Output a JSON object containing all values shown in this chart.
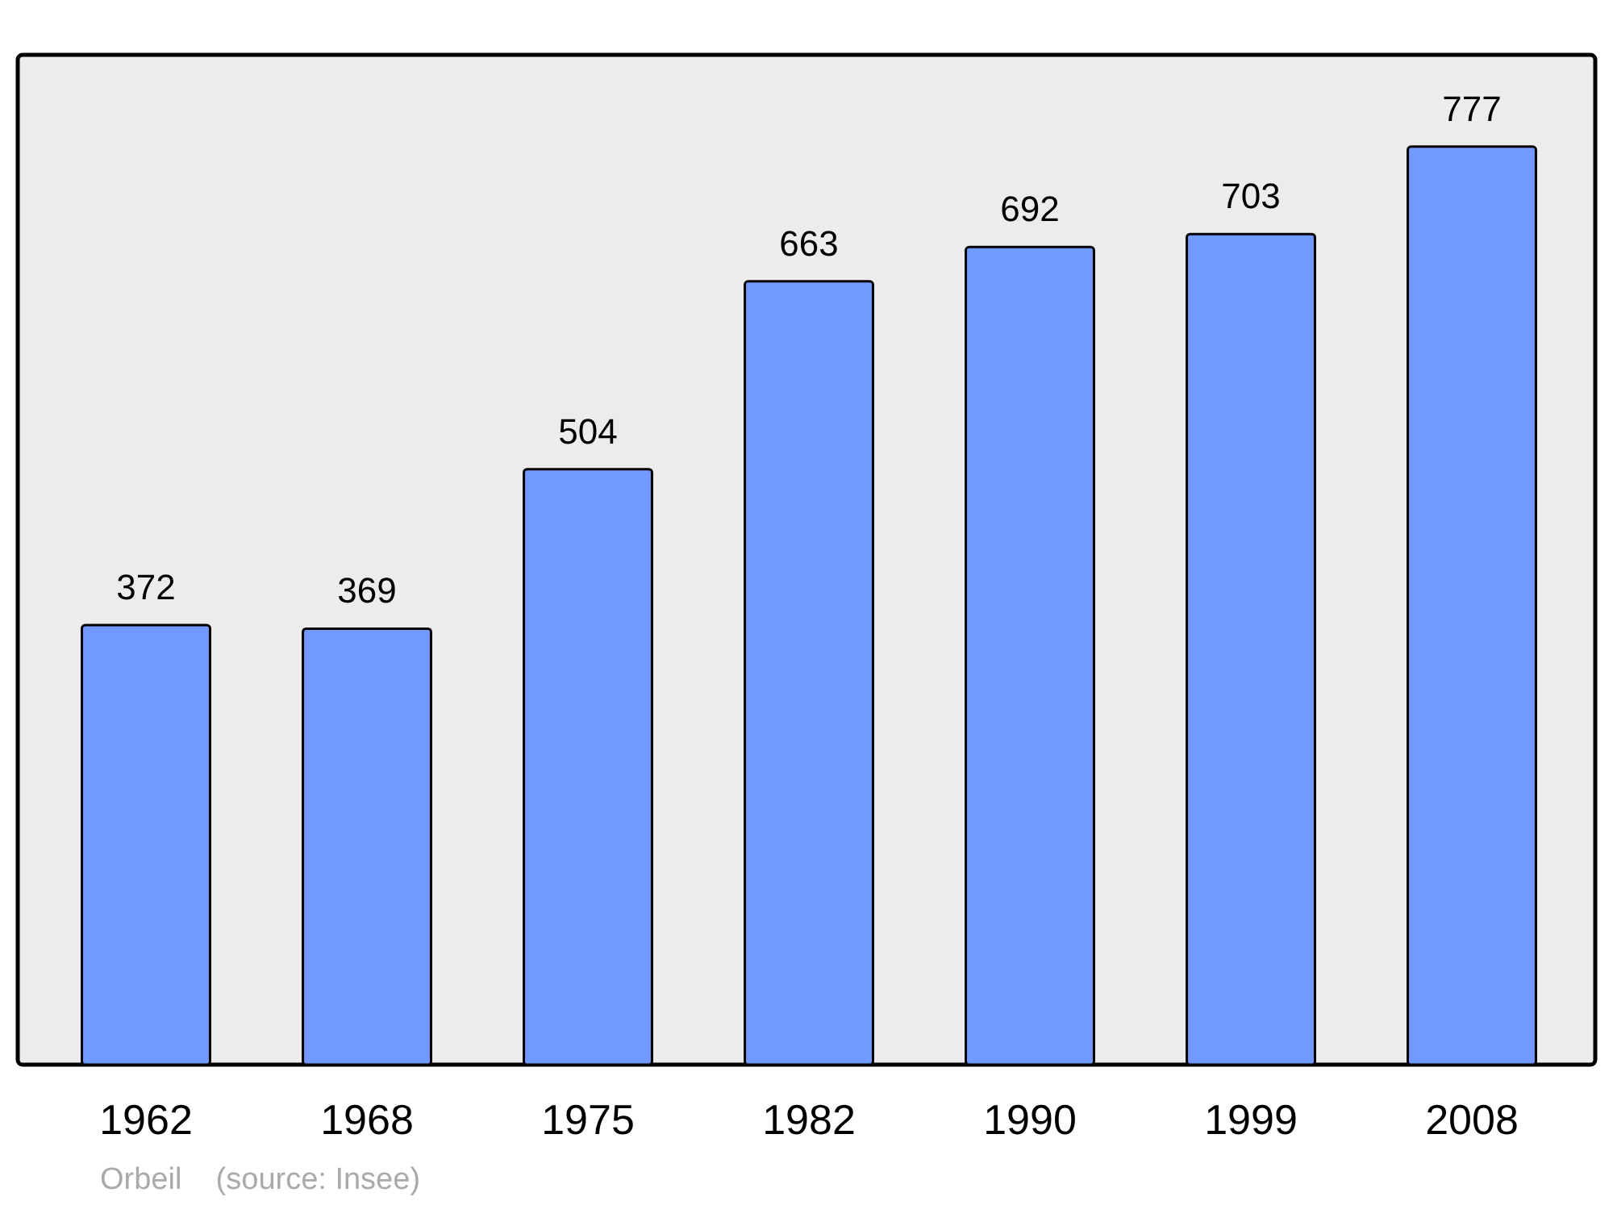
{
  "chart_data": {
    "type": "bar",
    "categories": [
      "1962",
      "1968",
      "1975",
      "1982",
      "1990",
      "1999",
      "2008"
    ],
    "values": [
      372,
      369,
      504,
      663,
      692,
      703,
      777
    ],
    "color": "#7299ff",
    "data_labels": true,
    "annotations": [
      "Orbeil    (source: Insee)"
    ]
  }
}
